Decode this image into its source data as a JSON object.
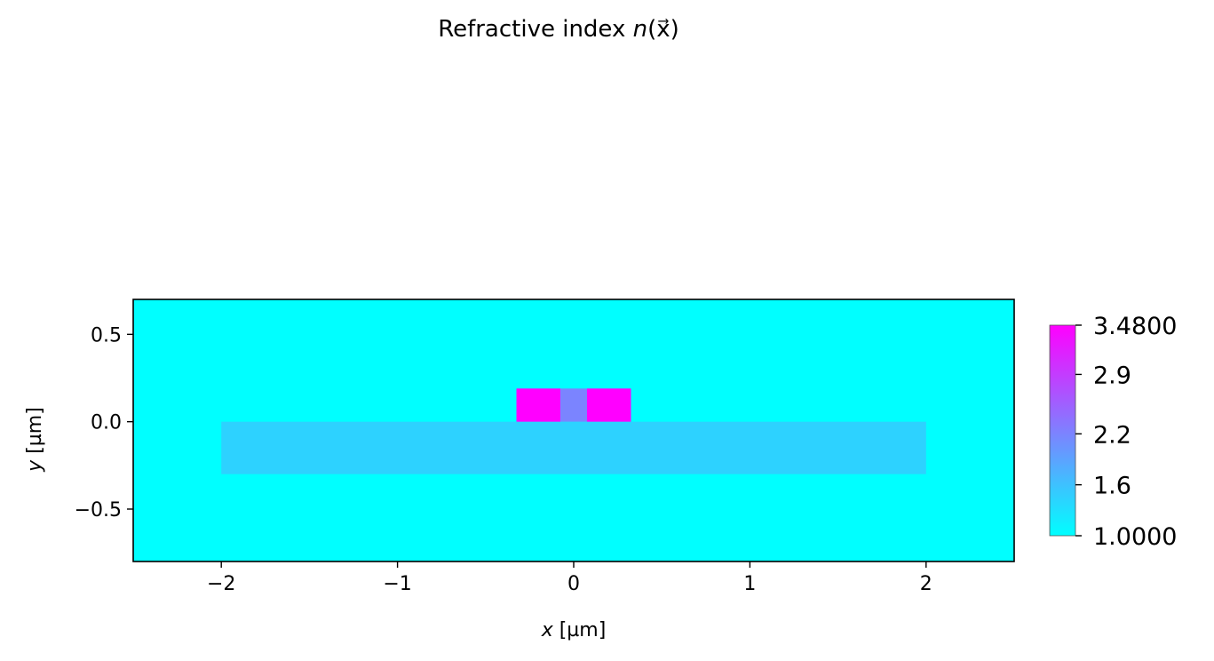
{
  "chart_data": {
    "type": "heatmap",
    "title": {
      "prefix": "Refractive index ",
      "symbol": "n",
      "suffix": "(x⃗)"
    },
    "xlabel": {
      "var": "x",
      "unit": " [µm]"
    },
    "ylabel": {
      "var": "y",
      "unit": " [µm]"
    },
    "xlim": [
      -2.5,
      2.5
    ],
    "ylim": [
      -0.8,
      0.7
    ],
    "xticks": [
      {
        "value": -2,
        "label": "−2"
      },
      {
        "value": -1,
        "label": "−1"
      },
      {
        "value": 0,
        "label": "0"
      },
      {
        "value": 1,
        "label": "1"
      },
      {
        "value": 2,
        "label": "2"
      }
    ],
    "yticks": [
      {
        "value": -0.5,
        "label": "−0.5"
      },
      {
        "value": 0.0,
        "label": "0.0"
      },
      {
        "value": 0.5,
        "label": "0.5"
      }
    ],
    "colormap": "cool",
    "background_n": 1.0,
    "regions": [
      {
        "name": "layer",
        "x0": -2.0,
        "x1": 2.0,
        "y0": -0.3,
        "y1": 0.0,
        "n": 1.44
      },
      {
        "name": "core-left",
        "x0": -0.325,
        "x1": -0.075,
        "y0": 0.0,
        "y1": 0.19,
        "n": 3.48
      },
      {
        "name": "slot",
        "x0": -0.075,
        "x1": 0.075,
        "y0": 0.0,
        "y1": 0.19,
        "n": 2.2
      },
      {
        "name": "core-right",
        "x0": 0.075,
        "x1": 0.325,
        "y0": 0.0,
        "y1": 0.19,
        "n": 3.48
      }
    ],
    "colorbar": {
      "min": 1.0,
      "max": 3.48,
      "ticks": [
        {
          "value": 1.0,
          "label": "1.0000"
        },
        {
          "value": 1.6,
          "label": "1.6"
        },
        {
          "value": 2.2,
          "label": "2.2"
        },
        {
          "value": 2.9,
          "label": "2.9"
        },
        {
          "value": 3.48,
          "label": "3.4800"
        }
      ]
    }
  }
}
